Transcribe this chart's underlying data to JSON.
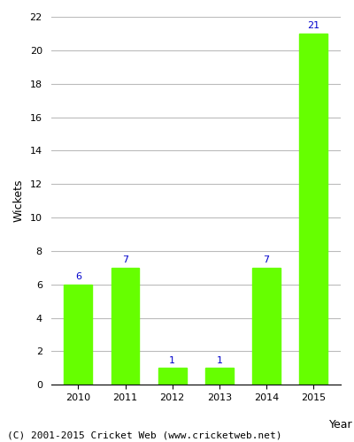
{
  "years": [
    "2010",
    "2011",
    "2012",
    "2013",
    "2014",
    "2015"
  ],
  "values": [
    6,
    7,
    1,
    1,
    7,
    21
  ],
  "bar_color": "#66ff00",
  "bar_edge_color": "#66ff00",
  "ylabel": "Wickets",
  "xlabel": "Year",
  "ylim": [
    0,
    22
  ],
  "yticks": [
    0,
    2,
    4,
    6,
    8,
    10,
    12,
    14,
    16,
    18,
    20,
    22
  ],
  "label_color": "#0000cc",
  "label_fontsize": 8,
  "axis_label_fontsize": 9,
  "tick_fontsize": 8,
  "background_color": "#ffffff",
  "grid_color": "#bbbbbb",
  "footer_text": "(C) 2001-2015 Cricket Web (www.cricketweb.net)",
  "footer_fontsize": 8,
  "footer_color": "#000000"
}
